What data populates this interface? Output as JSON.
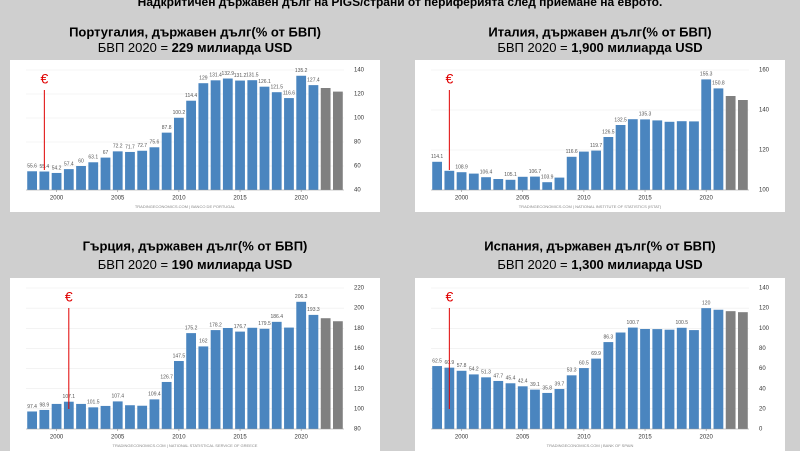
{
  "title": "Надкритичен държавен дълг на PIGS/страни от периферията след приемане на еврото.",
  "chart_data": [
    {
      "type": "bar",
      "title": "Португалия, държавен дълг(% от БВП)",
      "subtitle": [
        "БВП 2020 = ",
        "229 милиарда USD"
      ],
      "source": "TRADINGECONOMICS.COM | BANCO DE PORTUGAL",
      "annotation": "€",
      "categories": [
        null,
        null,
        "2000",
        null,
        null,
        null,
        null,
        "2005",
        null,
        null,
        null,
        null,
        "2010",
        null,
        null,
        null,
        null,
        "2015",
        null,
        null,
        null,
        null,
        "2020",
        null,
        null,
        null
      ],
      "values": [
        55.6,
        55.4,
        54.2,
        57.4,
        60,
        63.1,
        67,
        72.2,
        71.7,
        72.7,
        75.6,
        87.8,
        100.2,
        114.4,
        129,
        131.4,
        132.9,
        131.2,
        131.5,
        126.1,
        121.5,
        116.6,
        135.2,
        127.4,
        125,
        122
      ],
      "value_labels": [
        "55.6",
        "55.4",
        "54.2",
        "57.4",
        "60",
        "63.1",
        "67",
        "72.2",
        "71.7",
        "72.7",
        "75.6",
        "87.8",
        "100.2",
        "114.4",
        "129",
        "131.4",
        "132.9",
        "131.2",
        "131.5",
        "126.1",
        "121.5",
        "116.6",
        "135.2",
        "127.4",
        null,
        null
      ],
      "colors": [
        "#4a85bf",
        "#4a85bf",
        "#4a85bf",
        "#4a85bf",
        "#4a85bf",
        "#4a85bf",
        "#4a85bf",
        "#4a85bf",
        "#4a85bf",
        "#4a85bf",
        "#4a85bf",
        "#4a85bf",
        "#4a85bf",
        "#4a85bf",
        "#4a85bf",
        "#4a85bf",
        "#4a85bf",
        "#4a85bf",
        "#4a85bf",
        "#4a85bf",
        "#4a85bf",
        "#4a85bf",
        "#4a85bf",
        "#4a85bf",
        "#808080",
        "#808080"
      ],
      "ylim": [
        40,
        140
      ],
      "yticks": [
        40,
        60,
        80,
        100,
        120,
        140
      ],
      "grid": true
    },
    {
      "type": "bar",
      "title": "Италия, държавен дълг(% от БВП)",
      "subtitle": [
        "БВП 2020 = ",
        "1,900 милиарда USD"
      ],
      "source": "TRADINGECONOMICS.COM | NATIONAL INSTITUTE OF STATISTICS (ISTAT)",
      "annotation": "€",
      "categories": [
        null,
        null,
        "2000",
        null,
        null,
        null,
        null,
        "2005",
        null,
        null,
        null,
        null,
        "2010",
        null,
        null,
        null,
        null,
        "2015",
        null,
        null,
        null,
        null,
        "2020",
        null,
        null,
        null
      ],
      "values": [
        114.1,
        109.6,
        108.9,
        108.2,
        106.4,
        105.5,
        105.1,
        106.6,
        106.7,
        103.9,
        106.2,
        116.6,
        119.2,
        119.7,
        126.5,
        132.5,
        135.4,
        135.3,
        134.8,
        134.1,
        134.4,
        134.3,
        155.3,
        150.8,
        147,
        145
      ],
      "value_labels": [
        "114.1",
        null,
        "108.9",
        null,
        "106.4",
        null,
        "105.1",
        null,
        "106.7",
        "103.9",
        null,
        "116.6",
        null,
        "119.7",
        "126.5",
        "132.5",
        null,
        "135.3",
        null,
        null,
        null,
        null,
        "155.3",
        "150.8",
        null,
        null
      ],
      "colors": [
        "#4a85bf",
        "#4a85bf",
        "#4a85bf",
        "#4a85bf",
        "#4a85bf",
        "#4a85bf",
        "#4a85bf",
        "#4a85bf",
        "#4a85bf",
        "#4a85bf",
        "#4a85bf",
        "#4a85bf",
        "#4a85bf",
        "#4a85bf",
        "#4a85bf",
        "#4a85bf",
        "#4a85bf",
        "#4a85bf",
        "#4a85bf",
        "#4a85bf",
        "#4a85bf",
        "#4a85bf",
        "#4a85bf",
        "#4a85bf",
        "#808080",
        "#808080"
      ],
      "ylim": [
        100,
        160
      ],
      "yticks": [
        100,
        120,
        140,
        160
      ],
      "grid": true
    },
    {
      "type": "bar",
      "title": "Гърция, държавен дълг(% от БВП)",
      "subtitle": [
        "БВП 2020 = ",
        "190 милиарда USD"
      ],
      "source": "TRADINGECONOMICS.COM | NATIONAL STATISTICAL SERVICE OF GREECE",
      "annotation": "€",
      "categories": [
        null,
        null,
        "2000",
        null,
        null,
        null,
        null,
        "2005",
        null,
        null,
        null,
        null,
        "2010",
        null,
        null,
        null,
        null,
        "2015",
        null,
        null,
        null,
        null,
        "2020",
        null,
        null,
        null
      ],
      "values": [
        97.4,
        98.9,
        104.9,
        107.1,
        104.9,
        101.5,
        102.9,
        107.4,
        103.6,
        103.1,
        109.4,
        126.7,
        147.5,
        175.2,
        162,
        178.2,
        180.3,
        176.7,
        180.5,
        179.5,
        186.4,
        180.7,
        206.3,
        193.3,
        190,
        187
      ],
      "value_labels": [
        "97.4",
        "98.9",
        null,
        "107.1",
        null,
        "101.5",
        null,
        "107.4",
        null,
        null,
        "109.4",
        "126.7",
        "147.5",
        "175.2",
        "162",
        "178.2",
        null,
        "176.7",
        null,
        "179.5",
        "186.4",
        null,
        "206.3",
        "193.3",
        null,
        null
      ],
      "colors": [
        "#4a85bf",
        "#4a85bf",
        "#4a85bf",
        "#4a85bf",
        "#4a85bf",
        "#4a85bf",
        "#4a85bf",
        "#4a85bf",
        "#4a85bf",
        "#4a85bf",
        "#4a85bf",
        "#4a85bf",
        "#4a85bf",
        "#4a85bf",
        "#4a85bf",
        "#4a85bf",
        "#4a85bf",
        "#4a85bf",
        "#4a85bf",
        "#4a85bf",
        "#4a85bf",
        "#4a85bf",
        "#4a85bf",
        "#4a85bf",
        "#808080",
        "#808080"
      ],
      "ylim": [
        80,
        220
      ],
      "yticks": [
        80,
        100,
        120,
        140,
        160,
        180,
        200,
        220
      ],
      "grid": true
    },
    {
      "type": "bar",
      "title": "Испания, държавен дълг(% от БВП)",
      "subtitle": [
        "БВП 2020 = ",
        "1,300 милиарда USD"
      ],
      "source": "TRADINGECONOMICS.COM | BANK OF SPAIN",
      "annotation": "€",
      "categories": [
        null,
        null,
        "2000",
        null,
        null,
        null,
        null,
        "2005",
        null,
        null,
        null,
        null,
        "2010",
        null,
        null,
        null,
        null,
        "2015",
        null,
        null,
        null,
        null,
        "2020",
        null,
        null,
        null
      ],
      "values": [
        62.5,
        60.9,
        57.8,
        54.2,
        51.3,
        47.7,
        45.4,
        42.4,
        39.1,
        35.8,
        39.7,
        53.3,
        60.5,
        69.9,
        86.3,
        95.8,
        100.7,
        99.3,
        99.2,
        98.6,
        100.5,
        98.2,
        120,
        118.4,
        117,
        116
      ],
      "value_labels": [
        "62.5",
        "60.9",
        "57.8",
        "54.2",
        "51.3",
        "47.7",
        "45.4",
        "42.4",
        "39.1",
        "35.8",
        "39.7",
        "53.3",
        "60.5",
        "69.9",
        "86.3",
        null,
        "100.7",
        null,
        null,
        null,
        "100.5",
        null,
        "120",
        null,
        null,
        null
      ],
      "colors": [
        "#4a85bf",
        "#4a85bf",
        "#4a85bf",
        "#4a85bf",
        "#4a85bf",
        "#4a85bf",
        "#4a85bf",
        "#4a85bf",
        "#4a85bf",
        "#4a85bf",
        "#4a85bf",
        "#4a85bf",
        "#4a85bf",
        "#4a85bf",
        "#4a85bf",
        "#4a85bf",
        "#4a85bf",
        "#4a85bf",
        "#4a85bf",
        "#4a85bf",
        "#4a85bf",
        "#4a85bf",
        "#4a85bf",
        "#4a85bf",
        "#808080",
        "#808080"
      ],
      "ylim": [
        0,
        140
      ],
      "yticks": [
        0,
        20,
        40,
        60,
        80,
        100,
        120,
        140
      ],
      "grid": true
    }
  ]
}
